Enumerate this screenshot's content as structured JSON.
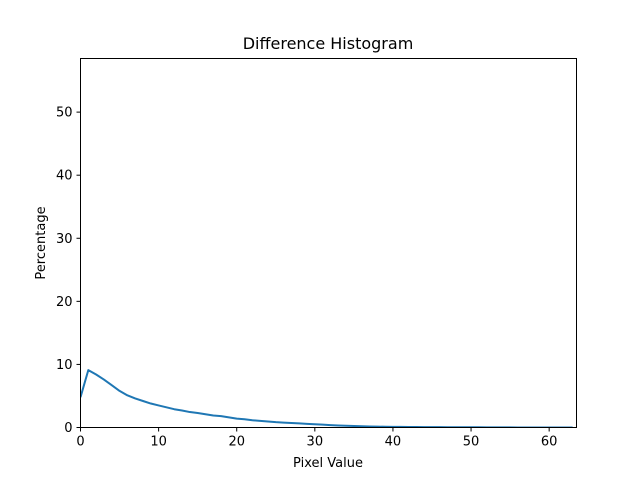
{
  "chart_data": {
    "type": "line",
    "title": "Difference Histogram",
    "xlabel": "Pixel Value",
    "ylabel": "Percentage",
    "xlim": [
      0,
      63.5
    ],
    "ylim": [
      0,
      58.5
    ],
    "xticks": [
      0,
      10,
      20,
      30,
      40,
      50,
      60
    ],
    "yticks": [
      0,
      10,
      20,
      30,
      40,
      50
    ],
    "grid": false,
    "line_color": "#1f77b4",
    "series": [
      {
        "x": [
          0,
          1,
          2,
          3,
          4,
          5,
          6,
          7,
          8,
          9,
          10,
          11,
          12,
          13,
          14,
          15,
          16,
          17,
          18,
          19,
          20,
          21,
          22,
          23,
          24,
          25,
          26,
          27,
          28,
          29,
          30,
          31,
          32,
          33,
          34,
          35,
          36,
          37,
          38,
          39,
          40,
          41,
          42,
          43,
          44,
          45,
          46,
          47,
          48,
          49,
          50,
          51,
          52,
          53,
          54,
          55,
          56,
          57,
          58,
          59,
          60,
          61,
          62,
          63
        ],
        "values": [
          4.8,
          9.1,
          8.4,
          7.6,
          6.7,
          5.8,
          5.1,
          4.6,
          4.2,
          3.8,
          3.5,
          3.2,
          2.9,
          2.7,
          2.45,
          2.3,
          2.1,
          1.9,
          1.8,
          1.6,
          1.4,
          1.3,
          1.15,
          1.05,
          0.95,
          0.85,
          0.78,
          0.72,
          0.65,
          0.58,
          0.52,
          0.45,
          0.38,
          0.32,
          0.27,
          0.23,
          0.19,
          0.16,
          0.14,
          0.12,
          0.1,
          0.09,
          0.08,
          0.07,
          0.06,
          0.05,
          0.05,
          0.04,
          0.04,
          0.03,
          0.03,
          0.03,
          0.02,
          0.02,
          0.02,
          0.02,
          0.01,
          0.01,
          0.01,
          0.01,
          0.01,
          0.01,
          0.01,
          0.01
        ]
      }
    ]
  }
}
